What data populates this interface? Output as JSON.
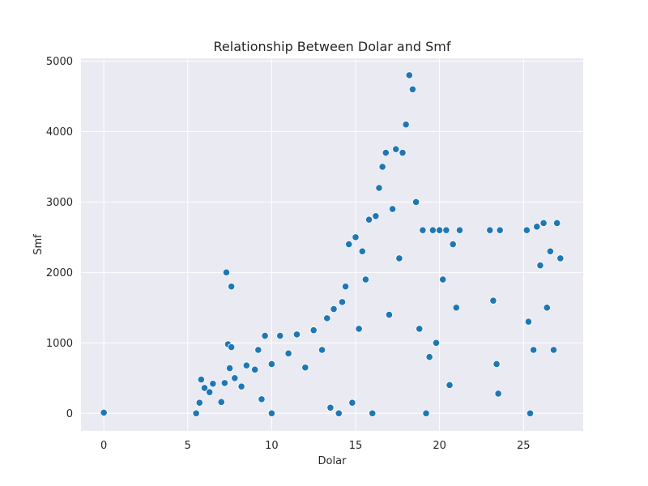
{
  "chart_data": {
    "type": "scatter",
    "title": "Relationship Between Dolar and Smf",
    "xlabel": "Dolar",
    "ylabel": "Smf",
    "xlim": [
      -1.36,
      28.56
    ],
    "ylim": [
      -250,
      5040
    ],
    "xticks": [
      0,
      5,
      10,
      15,
      20,
      25
    ],
    "yticks": [
      0,
      1000,
      2000,
      3000,
      4000,
      5000
    ],
    "grid": true,
    "legend": "none",
    "colors": {
      "background": "#eaeaf2",
      "grid": "#ffffff",
      "marker": "#1f77b4",
      "marker_edge": "#ffffff"
    },
    "points": [
      [
        0,
        10
      ],
      [
        7.3,
        2000
      ],
      [
        7.6,
        1800
      ],
      [
        10.0,
        0
      ],
      [
        7.4,
        980
      ],
      [
        7.6,
        940
      ],
      [
        5.5,
        0
      ],
      [
        5.7,
        150
      ],
      [
        5.8,
        480
      ],
      [
        6.0,
        360
      ],
      [
        6.3,
        300
      ],
      [
        6.5,
        420
      ],
      [
        7.0,
        160
      ],
      [
        7.2,
        430
      ],
      [
        7.5,
        640
      ],
      [
        7.8,
        500
      ],
      [
        8.2,
        380
      ],
      [
        8.5,
        680
      ],
      [
        9.0,
        620
      ],
      [
        9.2,
        900
      ],
      [
        9.4,
        200
      ],
      [
        9.6,
        1100
      ],
      [
        10.0,
        700
      ],
      [
        10.5,
        1100
      ],
      [
        11.0,
        850
      ],
      [
        11.5,
        1120
      ],
      [
        12.0,
        650
      ],
      [
        12.5,
        1180
      ],
      [
        13.0,
        900
      ],
      [
        13.3,
        1350
      ],
      [
        13.5,
        80
      ],
      [
        13.7,
        1480
      ],
      [
        14.0,
        0
      ],
      [
        14.2,
        1580
      ],
      [
        14.4,
        1800
      ],
      [
        14.6,
        2400
      ],
      [
        14.8,
        150
      ],
      [
        15.0,
        2500
      ],
      [
        15.2,
        1200
      ],
      [
        15.4,
        2300
      ],
      [
        15.6,
        1900
      ],
      [
        15.8,
        2750
      ],
      [
        16.0,
        0
      ],
      [
        16.2,
        2800
      ],
      [
        16.4,
        3200
      ],
      [
        16.6,
        3500
      ],
      [
        16.8,
        3700
      ],
      [
        17.0,
        1400
      ],
      [
        17.2,
        2900
      ],
      [
        17.4,
        3750
      ],
      [
        17.6,
        2200
      ],
      [
        17.8,
        3700
      ],
      [
        18.0,
        4100
      ],
      [
        18.2,
        4800
      ],
      [
        18.4,
        4600
      ],
      [
        18.6,
        3000
      ],
      [
        18.8,
        1200
      ],
      [
        19.0,
        2600
      ],
      [
        19.2,
        0
      ],
      [
        19.4,
        800
      ],
      [
        19.6,
        2600
      ],
      [
        19.8,
        1000
      ],
      [
        20.0,
        2600
      ],
      [
        20.2,
        1900
      ],
      [
        20.4,
        2600
      ],
      [
        20.6,
        400
      ],
      [
        20.8,
        2400
      ],
      [
        21.0,
        1500
      ],
      [
        21.2,
        2600
      ],
      [
        23.0,
        2600
      ],
      [
        23.2,
        1600
      ],
      [
        23.4,
        700
      ],
      [
        23.5,
        280
      ],
      [
        23.6,
        2600
      ],
      [
        25.2,
        2600
      ],
      [
        25.3,
        1300
      ],
      [
        25.4,
        0
      ],
      [
        25.6,
        900
      ],
      [
        25.8,
        2650
      ],
      [
        26.0,
        2100
      ],
      [
        26.2,
        2700
      ],
      [
        26.4,
        1500
      ],
      [
        26.6,
        2300
      ],
      [
        26.8,
        900
      ],
      [
        27.0,
        2700
      ],
      [
        27.2,
        2200
      ]
    ]
  }
}
